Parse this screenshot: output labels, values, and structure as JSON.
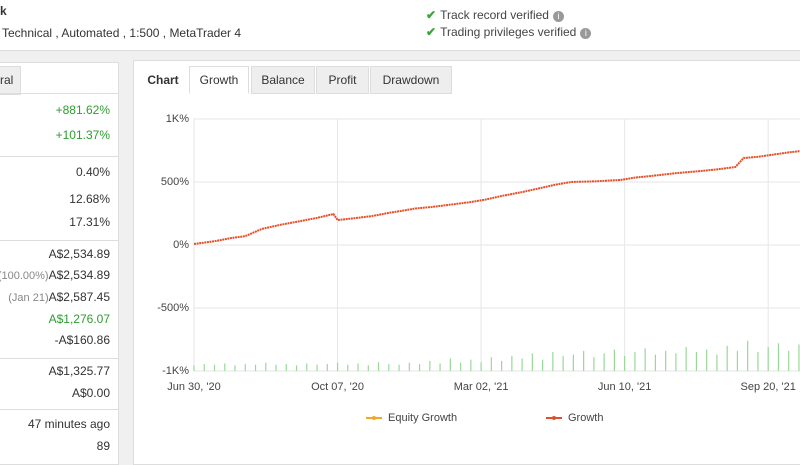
{
  "header": {
    "title": "k",
    "subtitle": "Technical , Automated , 1:500 , MetaTrader 4",
    "badges": [
      "Track record verified",
      "Trading privileges verified"
    ]
  },
  "stats": {
    "tab": "ral",
    "rows": [
      {
        "value": "+881.62%",
        "tone": "green"
      },
      {
        "value": "+101.37%",
        "tone": "green"
      },
      {
        "value": "0.40%"
      },
      {
        "value": "12.68%"
      },
      {
        "value": "17.31%"
      },
      {
        "value": "A$2,534.89"
      },
      {
        "note": "(100.00%)",
        "value": "A$2,534.89"
      },
      {
        "note": "(Jan 21)",
        "value": "A$2,587.45"
      },
      {
        "value": "A$1,276.07",
        "tone": "green"
      },
      {
        "value": "-A$160.86"
      },
      {
        "value": "A$1,325.77"
      },
      {
        "value": "A$0.00"
      },
      {
        "value": "47 minutes ago"
      },
      {
        "value": "89"
      }
    ]
  },
  "chart_tabs": {
    "items": [
      "Chart",
      "Growth",
      "Balance",
      "Profit",
      "Drawdown"
    ],
    "active": 1
  },
  "chart_data": {
    "type": "line",
    "grid": true,
    "xlim": [
      0,
      296
    ],
    "xticks": [
      {
        "value": 0,
        "label": "Jun 30, '20"
      },
      {
        "value": 70,
        "label": "Oct 07, '20"
      },
      {
        "value": 140,
        "label": "Mar 02, '21"
      },
      {
        "value": 210,
        "label": "Jun 10, '21"
      },
      {
        "value": 280,
        "label": "Sep 20, '21"
      }
    ],
    "ylim": [
      -1000,
      1000
    ],
    "yticks": [
      {
        "value": 1000,
        "label": "1K%"
      },
      {
        "value": 500,
        "label": "500%"
      },
      {
        "value": 0,
        "label": "0%"
      },
      {
        "value": -500,
        "label": "-500%"
      },
      {
        "value": -1000,
        "label": "-1K%"
      }
    ],
    "series": [
      {
        "name": "Equity Growth",
        "color": "#f5a623"
      },
      {
        "name": "Growth",
        "color": "#e2502a",
        "x": [
          0,
          10,
          18,
          25,
          33,
          42,
          52,
          60,
          68,
          70,
          78,
          87,
          95,
          101,
          108,
          116,
          125,
          135,
          142,
          150,
          160,
          169,
          176,
          184,
          195,
          208,
          215,
          223,
          235,
          247,
          255,
          264,
          268,
          275,
          281,
          290,
          296
        ],
        "values": [
          8,
          30,
          55,
          70,
          127,
          160,
          190,
          215,
          246,
          198,
          212,
          230,
          255,
          270,
          290,
          302,
          320,
          341,
          360,
          389,
          420,
          452,
          478,
          500,
          505,
          516,
          535,
          548,
          570,
          587,
          600,
          619,
          690,
          700,
          714,
          735,
          746
        ]
      }
    ],
    "bars": {
      "type": "bar",
      "color": "#9ad89a",
      "x": [
        0,
        5,
        10,
        15,
        20,
        25,
        30,
        35,
        40,
        45,
        50,
        55,
        60,
        65,
        70,
        75,
        80,
        85,
        90,
        95,
        100,
        105,
        110,
        115,
        120,
        125,
        130,
        135,
        140,
        145,
        150,
        155,
        160,
        165,
        170,
        175,
        180,
        185,
        190,
        195,
        200,
        205,
        210,
        215,
        220,
        225,
        230,
        235,
        240,
        245,
        250,
        255,
        260,
        265,
        270,
        275,
        280,
        285,
        290,
        295
      ],
      "values": [
        -955,
        -945,
        -950,
        -940,
        -955,
        -945,
        -950,
        -935,
        -950,
        -945,
        -955,
        -940,
        -950,
        -945,
        -935,
        -950,
        -940,
        -955,
        -930,
        -945,
        -950,
        -935,
        -945,
        -920,
        -940,
        -900,
        -935,
        -910,
        -930,
        -890,
        -920,
        -880,
        -900,
        -860,
        -910,
        -850,
        -880,
        -870,
        -840,
        -890,
        -860,
        -830,
        -880,
        -850,
        -820,
        -870,
        -840,
        -860,
        -810,
        -850,
        -830,
        -870,
        -800,
        -840,
        -760,
        -850,
        -810,
        -780,
        -840,
        -790
      ]
    }
  }
}
